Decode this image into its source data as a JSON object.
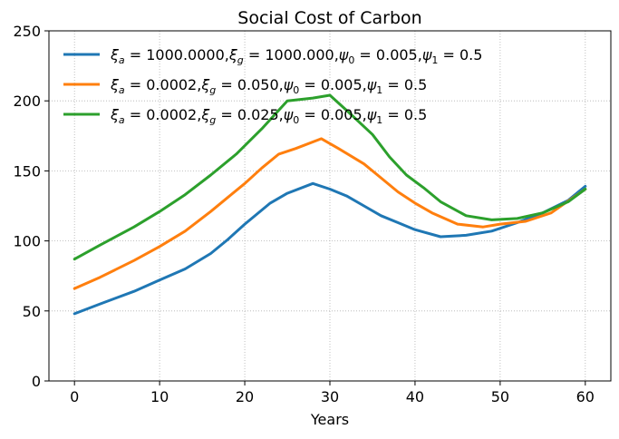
{
  "chart_data": {
    "type": "line",
    "title": "Social Cost of Carbon",
    "xlabel": "Years",
    "ylabel": "",
    "xlim": [
      -3,
      63
    ],
    "ylim": [
      0,
      250
    ],
    "xticks": [
      0,
      10,
      20,
      30,
      40,
      50,
      60
    ],
    "yticks": [
      0,
      50,
      100,
      150,
      200,
      250
    ],
    "grid": true,
    "grid_style": "dotted",
    "legend_position": "top-left",
    "series": [
      {
        "name": "ξ_a = 1000.0000, ξ_g = 1000.000, ψ_0 = 0.005, ψ_1 = 0.5",
        "legend": {
          "xi_a": "1000.0000",
          "xi_g": "1000.000",
          "psi_0": "0.005",
          "psi_1": "0.5"
        },
        "color": "#1f77b4",
        "x": [
          0,
          3,
          7,
          10,
          13,
          16,
          18,
          20,
          23,
          25,
          28,
          30,
          32,
          34,
          36,
          38,
          40,
          43,
          46,
          49,
          52,
          55,
          58,
          60
        ],
        "y": [
          48,
          55,
          64,
          72,
          80,
          91,
          101,
          112,
          127,
          134,
          141,
          137,
          132,
          125,
          118,
          113,
          108,
          103,
          104,
          107,
          113,
          120,
          129,
          139
        ]
      },
      {
        "name": "ξ_a = 0.0002, ξ_g = 0.050, ψ_0 = 0.005, ψ_1 = 0.5",
        "legend": {
          "xi_a": "0.0002",
          "xi_g": "0.050",
          "psi_0": "0.005",
          "psi_1": "0.5"
        },
        "color": "#ff7f0e",
        "x": [
          0,
          3,
          7,
          10,
          13,
          16,
          18,
          20,
          22,
          24,
          26,
          29,
          31,
          34,
          36,
          38,
          40,
          42,
          45,
          48,
          50,
          53,
          56,
          60
        ],
        "y": [
          66,
          74,
          86,
          96,
          107,
          121,
          131,
          141,
          152,
          162,
          166,
          173,
          166,
          155,
          145,
          135,
          127,
          120,
          112,
          110,
          112,
          114,
          120,
          137
        ]
      },
      {
        "name": "ξ_a = 0.0002, ξ_g = 0.025, ψ_0 = 0.005, ψ_1 = 0.5",
        "legend": {
          "xi_a": "0.0002",
          "xi_g": "0.025",
          "psi_0": "0.005",
          "psi_1": "0.5"
        },
        "color": "#2ca02c",
        "x": [
          0,
          3,
          7,
          10,
          13,
          16,
          19,
          22,
          25,
          28,
          30,
          32,
          35,
          37,
          39,
          41,
          43,
          46,
          49,
          52,
          55,
          58,
          60
        ],
        "y": [
          87,
          97,
          110,
          121,
          133,
          147,
          162,
          180,
          200,
          202,
          204,
          193,
          176,
          160,
          147,
          138,
          128,
          118,
          115,
          116,
          120,
          128,
          137
        ]
      }
    ]
  }
}
